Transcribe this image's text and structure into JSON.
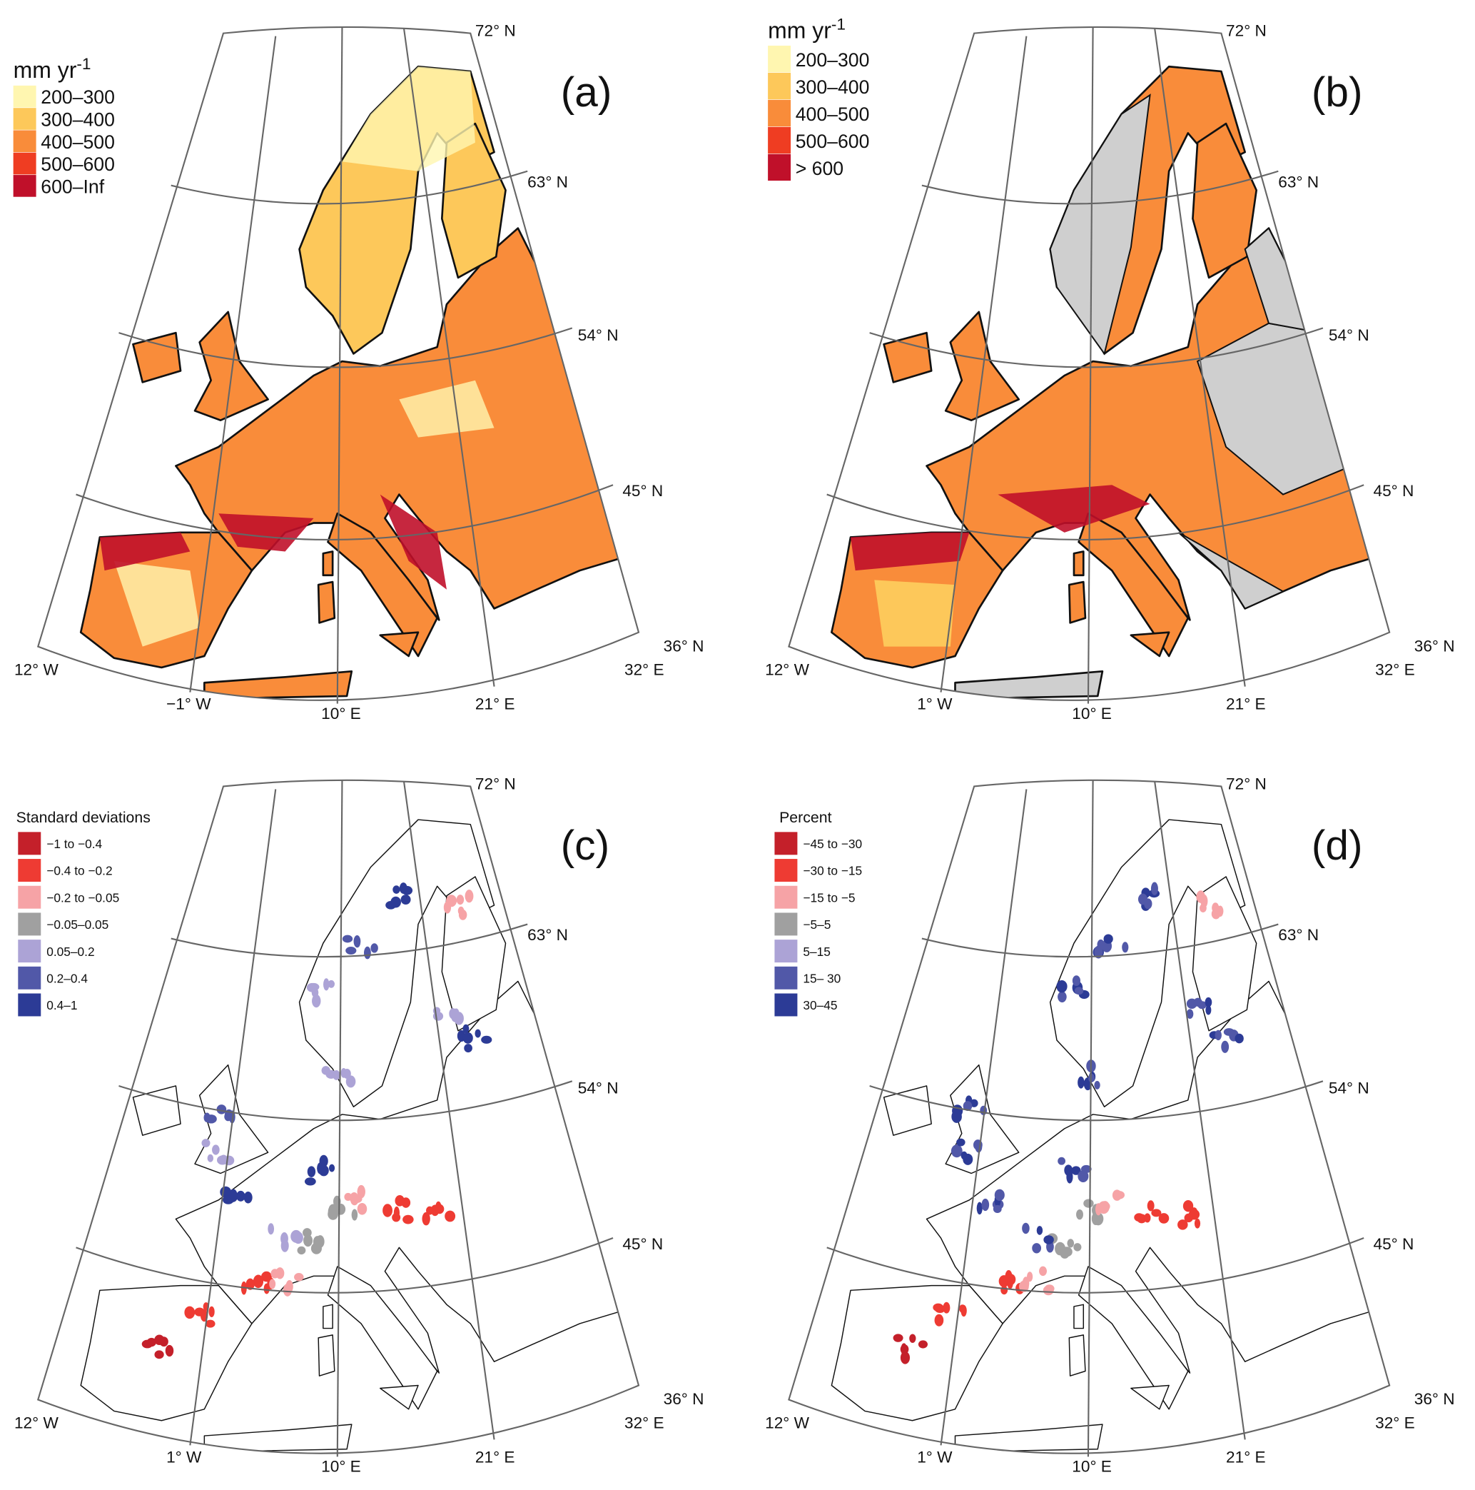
{
  "panels": [
    {
      "id": "a",
      "label": "(a)",
      "style": "continuous",
      "legend": {
        "title": "mm yr",
        "title_sup": "-1",
        "items": [
          {
            "label": "200–300",
            "color": "#fff6b0"
          },
          {
            "label": "300–400",
            "color": "#fdc85a"
          },
          {
            "label": "400–500",
            "color": "#f98c3a"
          },
          {
            "label": "500–600",
            "color": "#ef3d22"
          },
          {
            "label": "600–Inf",
            "color": "#c0102a"
          }
        ]
      },
      "lat_labels": [
        "72° N",
        "63° N",
        "54° N",
        "45° N",
        "36° N"
      ],
      "lon_labels": [
        "12° W",
        "−1° W",
        "10° E",
        "21° E",
        "32° E"
      ]
    },
    {
      "id": "b",
      "label": "(b)",
      "style": "partial",
      "legend": {
        "title": "mm yr",
        "title_sup": "-1",
        "items": [
          {
            "label": "200–300",
            "color": "#fff6b0"
          },
          {
            "label": "300–400",
            "color": "#fdc85a"
          },
          {
            "label": "400–500",
            "color": "#f98c3a"
          },
          {
            "label": "500–600",
            "color": "#ef3d22"
          },
          {
            "label": "> 600",
            "color": "#c0102a"
          }
        ]
      },
      "no_data_color": "#cfcfcf",
      "lat_labels": [
        "72° N",
        "63° N",
        "54° N",
        "45° N",
        "36° N"
      ],
      "lon_labels": [
        "12° W",
        "1° W",
        "10° E",
        "21° E",
        "32° E"
      ]
    },
    {
      "id": "c",
      "label": "(c)",
      "style": "points",
      "legend": {
        "title": "Standard deviations",
        "title_sup": "",
        "items": [
          {
            "label": "−1 to −0.4",
            "color": "#c4202a"
          },
          {
            "label": "−0.4 to −0.2",
            "color": "#ee3b33"
          },
          {
            "label": "−0.2 to −0.05",
            "color": "#f6a3a6"
          },
          {
            "label": "−0.05–0.05",
            "color": "#a0a0a0"
          },
          {
            "label": "0.05–0.2",
            "color": "#aca3d6"
          },
          {
            "label": "0.2–0.4",
            "color": "#5158a8"
          },
          {
            "label": "0.4–1",
            "color": "#2c3b96"
          }
        ]
      },
      "lat_labels": [
        "72° N",
        "63° N",
        "54° N",
        "45° N",
        "36° N"
      ],
      "lon_labels": [
        "12° W",
        "1° W",
        "10° E",
        "21° E",
        "32° E"
      ]
    },
    {
      "id": "d",
      "label": "(d)",
      "style": "points",
      "legend": {
        "title": "Percent",
        "title_sup": "",
        "items": [
          {
            "label": "−45 to −30",
            "color": "#c4202a"
          },
          {
            "label": "−30 to −15",
            "color": "#ee3b33"
          },
          {
            "label": "−15 to −5",
            "color": "#f6a3a6"
          },
          {
            "label": "−5–5",
            "color": "#a0a0a0"
          },
          {
            "label": "5–15",
            "color": "#aca3d6"
          },
          {
            "label": "15– 30",
            "color": "#5158a8"
          },
          {
            "label": "30–45",
            "color": "#2c3b96"
          }
        ]
      },
      "lat_labels": [
        "72° N",
        "63° N",
        "54° N",
        "45° N",
        "36° N"
      ],
      "lon_labels": [
        "12° W",
        "1° W",
        "10° E",
        "21° E",
        "32° E"
      ]
    }
  ]
}
